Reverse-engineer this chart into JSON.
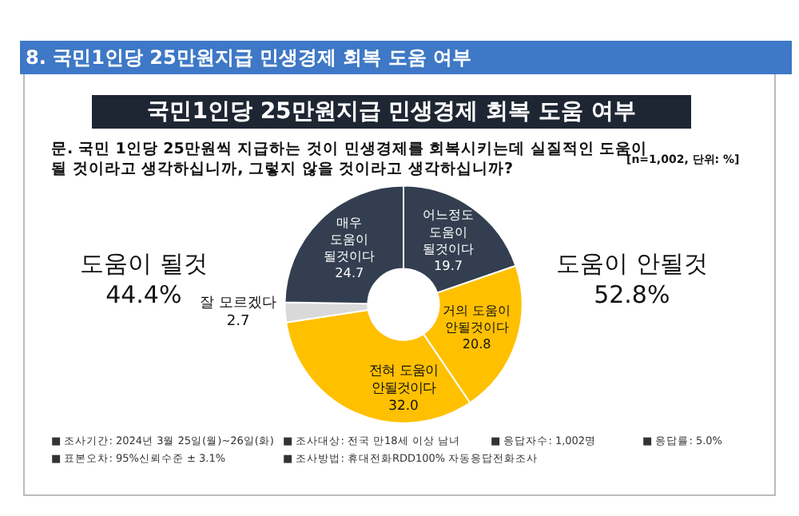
{
  "chart_data": {
    "type": "donut",
    "title": "국민1인당 25만원지급 민생경제 회복 도움 여부",
    "subtitle": "문. 국민 1인당 25만원씩 지급하는 것이 민생경제를 회복시키는데 실질적인 도움이\n될 것이라고 생각하십니까, 그렇지 않을 것이라고 생각하십니까?",
    "categories": [
      "어느정도\n도움이\n될것이다",
      "거의 도움이\n안될것이다",
      "전혀 도움이\n안될것이다",
      "잘 모르겠다",
      "매우\n도움이\n될것이다"
    ],
    "values": [
      19.7,
      20.8,
      32.0,
      2.7,
      24.7
    ],
    "colors": [
      "#333f50",
      "#ffc000",
      "#ffc000",
      "#d9d9d9",
      "#333f50"
    ],
    "value_labels": [
      "19.7",
      "20.8",
      "32.0",
      "2.7",
      "24.7"
    ],
    "annotations": [
      "8. 국민1인당 25만원지급 민생경제 회복 도움 여부",
      "[n=1,002, 단위: %]",
      "도움이 될것\n44.4%",
      "도움이 안될것\n52.8%",
      "■ 조사기간: 2024년 3월 25일(월)~26일(화)",
      "■ 조사대상: 전국 만18세 이상 남녀",
      "■ 응답자수: 1,002명",
      "■ 응답률: 5.0%",
      "■ 표본오차: 95%신뢰수준 ± 3.1%",
      "■ 조사방법: 휴대전화RDD100% 자동응답전화조사"
    ]
  }
}
